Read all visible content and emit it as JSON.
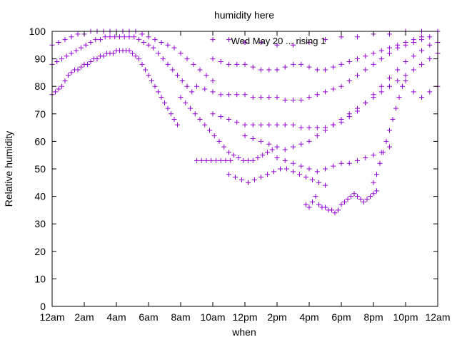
{
  "chart_data": {
    "type": "scatter",
    "title": "humidity here",
    "xlabel": "when",
    "ylabel": "Relative humidity",
    "xlim": [
      0,
      24
    ],
    "ylim": [
      0,
      100
    ],
    "x_ticks": [
      {
        "value": 0,
        "label": "12am"
      },
      {
        "value": 2,
        "label": "2am"
      },
      {
        "value": 4,
        "label": "4am"
      },
      {
        "value": 6,
        "label": "6am"
      },
      {
        "value": 8,
        "label": "8am"
      },
      {
        "value": 10,
        "label": "10am"
      },
      {
        "value": 12,
        "label": "12pm"
      },
      {
        "value": 14,
        "label": "2pm"
      },
      {
        "value": 16,
        "label": "4pm"
      },
      {
        "value": 18,
        "label": "6pm"
      },
      {
        "value": 20,
        "label": "8pm"
      },
      {
        "value": 22,
        "label": "10pm"
      },
      {
        "value": 24,
        "label": "12am"
      }
    ],
    "y_ticks": [
      0,
      10,
      20,
      30,
      40,
      50,
      60,
      70,
      80,
      90,
      100
    ],
    "grid": false,
    "legend_position": "top-right",
    "marker": "+",
    "series": [
      {
        "name": "Wed May 20 ... rising 1",
        "color": "#9400d3",
        "points": [
          [
            0.0,
            77
          ],
          [
            0.2,
            78
          ],
          [
            0.4,
            79
          ],
          [
            0.6,
            80
          ],
          [
            0.8,
            82
          ],
          [
            1.0,
            84
          ],
          [
            1.2,
            85
          ],
          [
            1.4,
            86
          ],
          [
            1.6,
            86
          ],
          [
            1.8,
            87
          ],
          [
            2.0,
            88
          ],
          [
            2.2,
            88
          ],
          [
            2.4,
            89
          ],
          [
            2.6,
            90
          ],
          [
            2.8,
            90
          ],
          [
            3.0,
            91
          ],
          [
            3.2,
            91
          ],
          [
            3.4,
            92
          ],
          [
            3.6,
            92
          ],
          [
            3.8,
            92
          ],
          [
            4.0,
            93
          ],
          [
            4.2,
            93
          ],
          [
            4.4,
            93
          ],
          [
            4.6,
            93
          ],
          [
            4.8,
            93
          ],
          [
            5.0,
            92
          ],
          [
            5.2,
            91
          ],
          [
            5.4,
            90
          ],
          [
            5.6,
            88
          ],
          [
            5.8,
            86
          ],
          [
            6.0,
            84
          ],
          [
            6.2,
            82
          ],
          [
            6.4,
            80
          ],
          [
            6.6,
            78
          ],
          [
            6.8,
            76
          ],
          [
            7.0,
            74
          ],
          [
            7.2,
            72
          ],
          [
            7.4,
            70
          ],
          [
            7.6,
            68
          ],
          [
            7.8,
            66
          ],
          [
            0.0,
            88
          ],
          [
            0.3,
            89
          ],
          [
            0.6,
            90
          ],
          [
            0.9,
            91
          ],
          [
            1.2,
            92
          ],
          [
            1.5,
            93
          ],
          [
            1.8,
            94
          ],
          [
            2.1,
            95
          ],
          [
            2.4,
            96
          ],
          [
            2.7,
            97
          ],
          [
            3.0,
            97
          ],
          [
            3.3,
            98
          ],
          [
            3.6,
            98
          ],
          [
            3.9,
            98
          ],
          [
            4.2,
            98
          ],
          [
            4.5,
            98
          ],
          [
            4.8,
            98
          ],
          [
            5.1,
            98
          ],
          [
            5.4,
            97
          ],
          [
            5.7,
            96
          ],
          [
            6.0,
            95
          ],
          [
            6.3,
            94
          ],
          [
            6.6,
            92
          ],
          [
            6.9,
            90
          ],
          [
            7.2,
            88
          ],
          [
            7.5,
            86
          ],
          [
            7.8,
            84
          ],
          [
            8.1,
            82
          ],
          [
            8.4,
            80
          ],
          [
            8.7,
            78
          ],
          [
            0.0,
            95
          ],
          [
            0.4,
            96
          ],
          [
            0.8,
            97
          ],
          [
            1.2,
            98
          ],
          [
            1.6,
            99
          ],
          [
            2.0,
            99
          ],
          [
            2.4,
            100
          ],
          [
            2.8,
            100
          ],
          [
            3.2,
            100
          ],
          [
            3.6,
            100
          ],
          [
            4.0,
            100
          ],
          [
            4.4,
            100
          ],
          [
            4.8,
            100
          ],
          [
            5.2,
            100
          ],
          [
            5.6,
            99
          ],
          [
            6.0,
            98
          ],
          [
            6.4,
            97
          ],
          [
            6.8,
            96
          ],
          [
            7.2,
            95
          ],
          [
            7.6,
            94
          ],
          [
            8.0,
            92
          ],
          [
            8.4,
            90
          ],
          [
            8.8,
            88
          ],
          [
            9.2,
            86
          ],
          [
            9.6,
            84
          ],
          [
            10.0,
            82
          ],
          [
            8.0,
            76
          ],
          [
            8.3,
            74
          ],
          [
            8.6,
            72
          ],
          [
            8.9,
            70
          ],
          [
            9.2,
            68
          ],
          [
            9.5,
            66
          ],
          [
            9.8,
            64
          ],
          [
            10.1,
            62
          ],
          [
            10.4,
            60
          ],
          [
            10.7,
            58
          ],
          [
            11.0,
            56
          ],
          [
            11.3,
            55
          ],
          [
            11.6,
            54
          ],
          [
            11.9,
            53
          ],
          [
            12.2,
            53
          ],
          [
            12.5,
            53
          ],
          [
            12.8,
            54
          ],
          [
            13.1,
            55
          ],
          [
            13.4,
            56
          ],
          [
            13.7,
            57
          ],
          [
            9.0,
            53
          ],
          [
            9.3,
            53
          ],
          [
            9.6,
            53
          ],
          [
            9.9,
            53
          ],
          [
            10.2,
            53
          ],
          [
            10.5,
            53
          ],
          [
            10.8,
            53
          ],
          [
            11.1,
            53
          ],
          [
            11.0,
            48
          ],
          [
            11.4,
            47
          ],
          [
            11.8,
            46
          ],
          [
            12.2,
            45
          ],
          [
            12.6,
            46
          ],
          [
            13.0,
            47
          ],
          [
            13.4,
            48
          ],
          [
            13.8,
            49
          ],
          [
            14.2,
            50
          ],
          [
            14.6,
            50
          ],
          [
            15.0,
            49
          ],
          [
            15.4,
            48
          ],
          [
            15.8,
            47
          ],
          [
            16.2,
            46
          ],
          [
            16.6,
            45
          ],
          [
            17.0,
            44
          ],
          [
            15.8,
            37
          ],
          [
            16.0,
            36
          ],
          [
            16.2,
            38
          ],
          [
            16.4,
            40
          ],
          [
            16.6,
            37
          ],
          [
            16.8,
            36
          ],
          [
            17.0,
            36
          ],
          [
            17.2,
            35
          ],
          [
            17.4,
            35
          ],
          [
            17.6,
            34
          ],
          [
            17.8,
            35
          ],
          [
            18.0,
            37
          ],
          [
            18.2,
            38
          ],
          [
            18.4,
            39
          ],
          [
            18.6,
            40
          ],
          [
            18.8,
            41
          ],
          [
            19.0,
            40
          ],
          [
            19.2,
            39
          ],
          [
            19.4,
            38
          ],
          [
            19.6,
            39
          ],
          [
            19.8,
            40
          ],
          [
            20.0,
            41
          ],
          [
            20.2,
            42
          ],
          [
            12.0,
            62
          ],
          [
            12.5,
            61
          ],
          [
            13.0,
            60
          ],
          [
            13.5,
            59
          ],
          [
            14.0,
            58
          ],
          [
            14.5,
            57
          ],
          [
            15.0,
            58
          ],
          [
            15.5,
            59
          ],
          [
            16.0,
            60
          ],
          [
            16.5,
            62
          ],
          [
            17.0,
            64
          ],
          [
            17.5,
            66
          ],
          [
            18.0,
            68
          ],
          [
            18.5,
            70
          ],
          [
            19.0,
            72
          ],
          [
            19.5,
            74
          ],
          [
            20.0,
            76
          ],
          [
            20.5,
            78
          ],
          [
            21.0,
            80
          ],
          [
            21.5,
            82
          ],
          [
            22.0,
            84
          ],
          [
            22.5,
            86
          ],
          [
            23.0,
            88
          ],
          [
            23.5,
            90
          ],
          [
            24.0,
            92
          ],
          [
            10.0,
            70
          ],
          [
            10.5,
            69
          ],
          [
            11.0,
            68
          ],
          [
            11.5,
            67
          ],
          [
            12.0,
            66
          ],
          [
            12.5,
            66
          ],
          [
            13.0,
            66
          ],
          [
            13.5,
            66
          ],
          [
            14.0,
            66
          ],
          [
            14.5,
            66
          ],
          [
            15.0,
            66
          ],
          [
            15.5,
            65
          ],
          [
            16.0,
            65
          ],
          [
            16.5,
            65
          ],
          [
            17.0,
            65
          ],
          [
            17.5,
            66
          ],
          [
            18.0,
            67
          ],
          [
            18.5,
            69
          ],
          [
            19.0,
            71
          ],
          [
            19.5,
            74
          ],
          [
            20.0,
            77
          ],
          [
            20.5,
            80
          ],
          [
            21.0,
            83
          ],
          [
            21.5,
            86
          ],
          [
            22.0,
            89
          ],
          [
            22.5,
            91
          ],
          [
            23.0,
            93
          ],
          [
            23.5,
            95
          ],
          [
            24.0,
            96
          ],
          [
            9.0,
            80
          ],
          [
            9.5,
            79
          ],
          [
            10.0,
            78
          ],
          [
            10.5,
            77
          ],
          [
            11.0,
            77
          ],
          [
            11.5,
            77
          ],
          [
            12.0,
            77
          ],
          [
            12.5,
            76
          ],
          [
            13.0,
            76
          ],
          [
            13.5,
            76
          ],
          [
            14.0,
            76
          ],
          [
            14.5,
            75
          ],
          [
            15.0,
            75
          ],
          [
            15.5,
            75
          ],
          [
            16.0,
            76
          ],
          [
            16.5,
            77
          ],
          [
            17.0,
            78
          ],
          [
            17.5,
            79
          ],
          [
            18.0,
            80
          ],
          [
            18.5,
            82
          ],
          [
            19.0,
            84
          ],
          [
            19.5,
            86
          ],
          [
            20.0,
            88
          ],
          [
            20.5,
            90
          ],
          [
            21.0,
            92
          ],
          [
            21.5,
            94
          ],
          [
            22.0,
            95
          ],
          [
            22.5,
            96
          ],
          [
            23.0,
            97
          ],
          [
            23.5,
            98
          ],
          [
            10.0,
            90
          ],
          [
            10.5,
            89
          ],
          [
            11.0,
            88
          ],
          [
            11.5,
            88
          ],
          [
            12.0,
            88
          ],
          [
            12.5,
            87
          ],
          [
            13.0,
            86
          ],
          [
            13.5,
            86
          ],
          [
            14.0,
            86
          ],
          [
            14.5,
            87
          ],
          [
            15.0,
            88
          ],
          [
            15.5,
            88
          ],
          [
            16.0,
            87
          ],
          [
            16.5,
            86
          ],
          [
            17.0,
            86
          ],
          [
            17.5,
            87
          ],
          [
            18.0,
            88
          ],
          [
            18.5,
            89
          ],
          [
            19.0,
            90
          ],
          [
            19.5,
            91
          ],
          [
            20.0,
            92
          ],
          [
            20.5,
            93
          ],
          [
            21.0,
            94
          ],
          [
            21.5,
            95
          ],
          [
            22.0,
            96
          ],
          [
            22.5,
            97
          ],
          [
            23.0,
            98
          ],
          [
            10.0,
            97
          ],
          [
            11.0,
            97
          ],
          [
            12.0,
            96
          ],
          [
            13.0,
            96
          ],
          [
            14.0,
            95
          ],
          [
            15.0,
            95
          ],
          [
            16.0,
            96
          ],
          [
            17.0,
            97
          ],
          [
            18.0,
            98
          ],
          [
            19.0,
            98
          ],
          [
            20.0,
            99
          ],
          [
            21.0,
            99
          ],
          [
            22.0,
            100
          ],
          [
            23.0,
            100
          ],
          [
            24.0,
            100
          ],
          [
            14.0,
            54
          ],
          [
            14.5,
            53
          ],
          [
            15.0,
            52
          ],
          [
            15.5,
            51
          ],
          [
            16.0,
            50
          ],
          [
            16.5,
            49
          ],
          [
            17.0,
            50
          ],
          [
            17.5,
            51
          ],
          [
            18.0,
            52
          ],
          [
            18.5,
            52
          ],
          [
            19.0,
            53
          ],
          [
            19.5,
            54
          ],
          [
            20.0,
            55
          ],
          [
            20.5,
            56
          ],
          [
            21.0,
            58
          ],
          [
            20.0,
            45
          ],
          [
            20.2,
            48
          ],
          [
            20.4,
            52
          ],
          [
            20.6,
            56
          ],
          [
            20.8,
            60
          ],
          [
            21.0,
            64
          ],
          [
            21.2,
            68
          ],
          [
            21.4,
            72
          ],
          [
            21.6,
            76
          ],
          [
            21.8,
            80
          ],
          [
            22.0,
            82
          ],
          [
            22.5,
            78
          ],
          [
            23.0,
            76
          ],
          [
            23.5,
            78
          ],
          [
            24.0,
            80
          ]
        ]
      }
    ]
  }
}
